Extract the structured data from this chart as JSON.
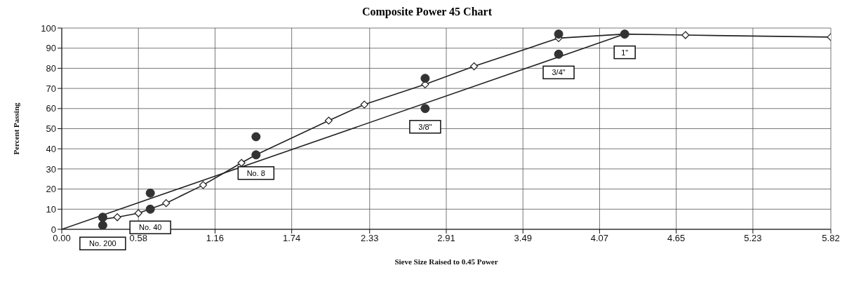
{
  "chart_data": {
    "type": "line",
    "title": "Composite Power 45 Chart",
    "xlabel": "Sieve Size Raised to 0.45 Power",
    "ylabel": "Percent Passing",
    "xlim": [
      0,
      5.82
    ],
    "xticks": [
      {
        "value": 0,
        "label": "0.00"
      },
      0.58,
      1.16,
      1.74,
      2.33,
      2.91,
      3.49,
      4.07,
      4.65,
      5.23,
      5.82
    ],
    "ylim": [
      0,
      100
    ],
    "yticks": [
      0,
      10,
      20,
      30,
      40,
      50,
      60,
      70,
      80,
      90,
      100
    ],
    "grid": true,
    "series": [
      {
        "color": "#222222",
        "marker": "diamond",
        "x": [
          0.31,
          0.42,
          0.58,
          0.79,
          1.07,
          1.36,
          1.47,
          2.02,
          2.29,
          2.75,
          3.12,
          3.76,
          4.26,
          4.72,
          5.82
        ],
        "values": [
          5,
          6,
          8,
          13,
          22,
          33,
          37,
          54,
          62,
          72,
          81,
          95,
          97,
          96.5,
          95.5
        ]
      },
      {
        "color": "#222222",
        "marker": "none",
        "x": [
          0,
          4.26
        ],
        "values": [
          0,
          97
        ]
      },
      {
        "type": "scatter",
        "color": "#333333",
        "marker": "circle",
        "x": [
          0.31,
          0.31,
          0.67,
          0.67,
          1.47,
          1.47,
          2.75,
          2.75,
          3.76,
          3.76,
          4.26
        ],
        "values": [
          6,
          2,
          18,
          10,
          46,
          37,
          75,
          60,
          97,
          87,
          97
        ]
      }
    ],
    "annotations": [
      {
        "text": "No. 200",
        "x": 0.31,
        "y": 2
      },
      {
        "text": "No. 40",
        "x": 0.67,
        "y": 10
      },
      {
        "text": "No. 8",
        "x": 1.47,
        "y": 37
      },
      {
        "text": "3/8\"",
        "x": 2.75,
        "y": 60
      },
      {
        "text": "3/4\"",
        "x": 3.76,
        "y": 87
      },
      {
        "text": "1\"",
        "x": 4.26,
        "y": 97
      }
    ]
  }
}
